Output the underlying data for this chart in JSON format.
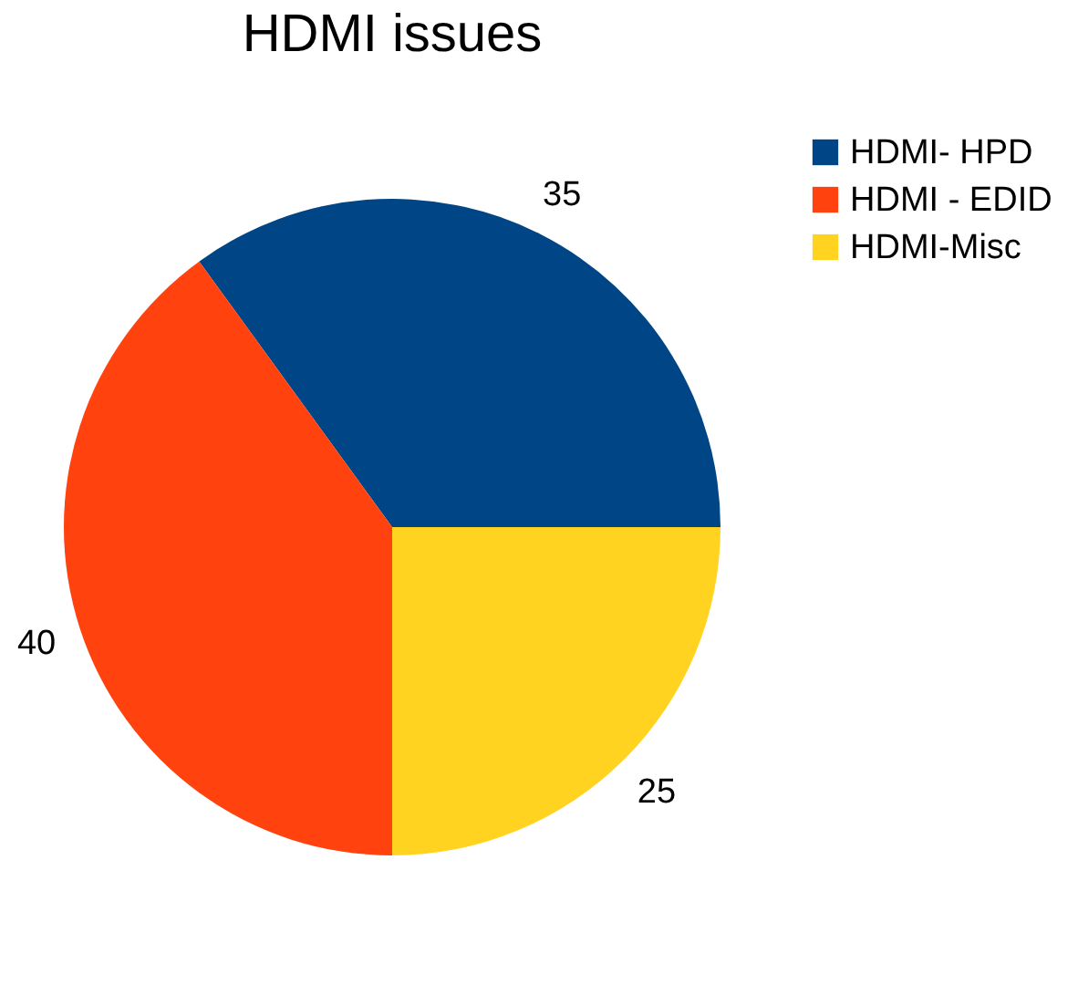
{
  "chart_data": {
    "type": "pie",
    "title": "HDMI issues",
    "categories": [
      "HDMI- HPD",
      "HDMI - EDID",
      "HDMI-Misc"
    ],
    "values": [
      35,
      40,
      25
    ],
    "colors": [
      "#004586",
      "#ff420e",
      "#ffd320"
    ],
    "data_labels": true,
    "legend": "right"
  }
}
